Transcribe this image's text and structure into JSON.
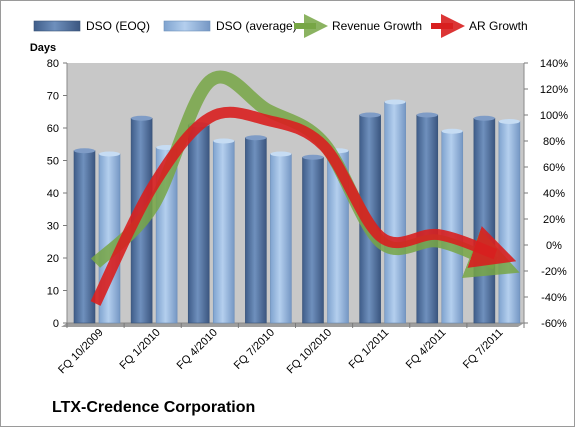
{
  "company": "LTX-Credence Corporation",
  "colors": {
    "plot_bg": "#c8c8c8",
    "bar_eoq": "#4f6e9c",
    "bar_avg": "#8fb1d9",
    "revenue_growth": "#77a645",
    "ar_growth": "#d81f1f"
  },
  "chart_data": {
    "type": "bar",
    "categories": [
      "FQ 10/2009",
      "FQ 1/2010",
      "FQ 4/2010",
      "FQ 7/2010",
      "FQ 10/2010",
      "FQ 1/2011",
      "FQ 4/2011",
      "FQ 7/2011"
    ],
    "series": [
      {
        "name": "DSO (EOQ)",
        "kind": "bar",
        "axis": "left",
        "values": [
          53,
          63,
          61,
          57,
          51,
          64,
          64,
          63
        ]
      },
      {
        "name": "DSO (average)",
        "kind": "bar",
        "axis": "left",
        "values": [
          52,
          54,
          56,
          52,
          53,
          68,
          59,
          62
        ]
      },
      {
        "name": "Revenue Growth",
        "kind": "arrow",
        "axis": "right",
        "values": [
          -0.14,
          0.3,
          1.26,
          1.04,
          0.78,
          0.02,
          0.03,
          -0.14
        ]
      },
      {
        "name": "AR Growth",
        "kind": "arrow",
        "axis": "right",
        "values": [
          -0.45,
          0.45,
          0.98,
          0.96,
          0.76,
          0.06,
          0.08,
          -0.07
        ]
      }
    ],
    "ylabel": "Days",
    "ylim": [
      0,
      80
    ],
    "yticks": [
      0,
      10,
      20,
      30,
      40,
      50,
      60,
      70,
      80
    ],
    "y2lim": [
      -0.6,
      1.4
    ],
    "y2ticks": [
      "-60%",
      "-40%",
      "-20%",
      "0%",
      "20%",
      "40%",
      "60%",
      "80%",
      "100%",
      "120%",
      "140%"
    ],
    "legend_position": "top",
    "grid": false
  }
}
